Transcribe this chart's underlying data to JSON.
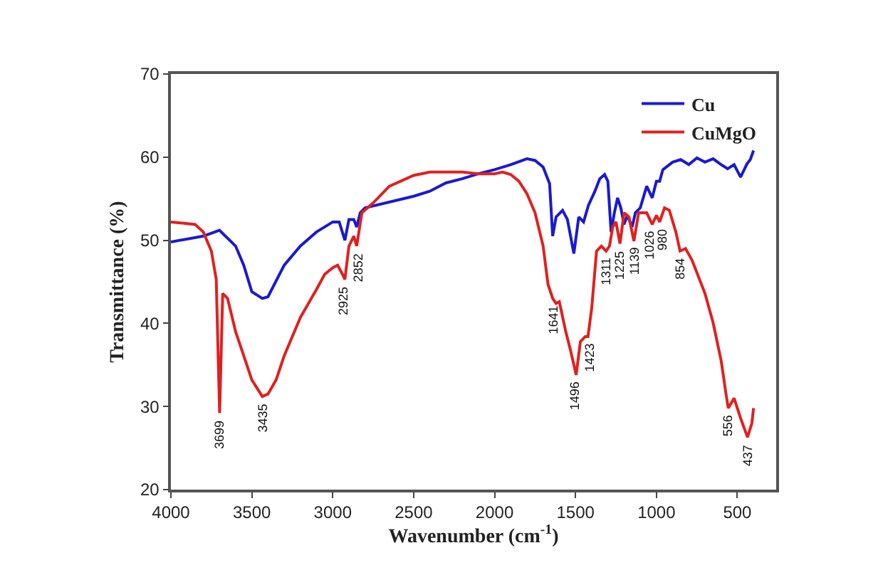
{
  "chart_data": {
    "type": "line",
    "xlabel": "Wavenumber (cm$^{-1}$)",
    "ylabel": "Transmittance (%)",
    "xlim": [
      4000,
      260
    ],
    "xticks": [
      4000,
      3500,
      3000,
      2500,
      2000,
      1500,
      1000,
      500
    ],
    "ylim": [
      20,
      70
    ],
    "yticks": [
      20,
      30,
      40,
      50,
      60,
      70
    ],
    "grid": false,
    "legend": "top right",
    "line_style": "solid",
    "series": [
      {
        "name": "Cu",
        "color": "#1a1ad0",
        "x": [
          4000,
          3800,
          3700,
          3600,
          3550,
          3500,
          3435,
          3400,
          3300,
          3200,
          3100,
          3000,
          2960,
          2925,
          2900,
          2870,
          2852,
          2830,
          2800,
          2500,
          2400,
          2350,
          2300,
          2200,
          2100,
          2000,
          1900,
          1800,
          1750,
          1700,
          1660,
          1641,
          1620,
          1580,
          1550,
          1510,
          1480,
          1450,
          1420,
          1380,
          1350,
          1320,
          1300,
          1280,
          1260,
          1240,
          1220,
          1200,
          1180,
          1150,
          1130,
          1100,
          1060,
          1026,
          1000,
          980,
          960,
          900,
          850,
          800,
          750,
          700,
          650,
          600,
          560,
          520,
          480,
          440,
          420,
          400
        ],
        "values": [
          49.8,
          50.5,
          51.2,
          49.3,
          47,
          43.8,
          43,
          43.2,
          47,
          49.3,
          51,
          52.2,
          52.2,
          50,
          52.5,
          52.5,
          51.6,
          53.3,
          53.9,
          55.3,
          55.9,
          56.4,
          56.9,
          57.4,
          58,
          58.5,
          59.1,
          59.8,
          59.6,
          58.8,
          56.8,
          50.5,
          52.8,
          53.6,
          52.5,
          48.4,
          52.8,
          52.2,
          54.2,
          55.9,
          57.4,
          57.9,
          57.1,
          51,
          53.3,
          55.1,
          53.9,
          51.9,
          53,
          51.6,
          53.3,
          53.9,
          56.5,
          55.1,
          57.1,
          57.1,
          58.5,
          59.4,
          59.7,
          59.1,
          59.9,
          59.4,
          59.8,
          59.1,
          58.6,
          59.1,
          57.6,
          59.2,
          59.7,
          60.8
        ]
      },
      {
        "name": "CuMgO",
        "color": "#e02020",
        "x": [
          4000,
          3850,
          3800,
          3750,
          3720,
          3699,
          3680,
          3650,
          3600,
          3550,
          3500,
          3435,
          3400,
          3350,
          3300,
          3250,
          3200,
          3150,
          3100,
          3050,
          3000,
          2970,
          2940,
          2925,
          2900,
          2870,
          2852,
          2820,
          2750,
          2650,
          2500,
          2400,
          2300,
          2200,
          2100,
          2000,
          1950,
          1900,
          1850,
          1800,
          1750,
          1700,
          1670,
          1641,
          1620,
          1600,
          1560,
          1530,
          1496,
          1470,
          1440,
          1423,
          1400,
          1370,
          1340,
          1311,
          1290,
          1270,
          1250,
          1225,
          1200,
          1170,
          1139,
          1110,
          1060,
          1026,
          1000,
          980,
          950,
          920,
          880,
          854,
          820,
          780,
          700,
          650,
          600,
          570,
          556,
          520,
          480,
          437,
          410,
          400
        ],
        "values": [
          52.2,
          51.9,
          51,
          48.7,
          45.3,
          29.2,
          43.6,
          43,
          39,
          36.1,
          33.2,
          31.2,
          31.5,
          33.2,
          36.1,
          38.4,
          40.7,
          42.4,
          44.1,
          45.9,
          46.7,
          47,
          45.9,
          45.3,
          49.3,
          50.5,
          49.3,
          53.3,
          54.5,
          56.5,
          57.8,
          58.2,
          58.2,
          58.2,
          58,
          58,
          58.2,
          57.9,
          57.1,
          55.6,
          53.3,
          49.3,
          44.7,
          43,
          42.4,
          42.6,
          39,
          36.7,
          33.8,
          37.8,
          38.4,
          38.4,
          41.8,
          48.7,
          49.3,
          48.7,
          49.3,
          51.6,
          52.2,
          49.6,
          53.3,
          52.8,
          49.9,
          53.3,
          53.3,
          51.9,
          53,
          52.2,
          53.9,
          53.6,
          51,
          48.7,
          49,
          47.6,
          43.6,
          40.1,
          35.5,
          31.5,
          29.8,
          31,
          28.6,
          26.3,
          28,
          29.8
        ]
      }
    ],
    "annotations": [
      {
        "text": "3699",
        "x": 3699,
        "y": 29.2
      },
      {
        "text": "3435",
        "x": 3435,
        "y": 31.2
      },
      {
        "text": "2925",
        "x": 2925,
        "y": 45.3
      },
      {
        "text": "2852",
        "x": 2852,
        "y": 49.3
      },
      {
        "text": "1641",
        "x": 1641,
        "y": 43
      },
      {
        "text": "1496",
        "x": 1496,
        "y": 33.8
      },
      {
        "text": "1423",
        "x": 1423,
        "y": 38.4
      },
      {
        "text": "1311",
        "x": 1311,
        "y": 48.7
      },
      {
        "text": "1225",
        "x": 1225,
        "y": 49.6
      },
      {
        "text": "1139",
        "x": 1139,
        "y": 49.9
      },
      {
        "text": "1026",
        "x": 1026,
        "y": 51.9
      },
      {
        "text": "980",
        "x": 980,
        "y": 52.2
      },
      {
        "text": "854",
        "x": 854,
        "y": 48.7
      },
      {
        "text": "556",
        "x": 556,
        "y": 29.8
      },
      {
        "text": "437",
        "x": 437,
        "y": 26.3
      }
    ]
  }
}
